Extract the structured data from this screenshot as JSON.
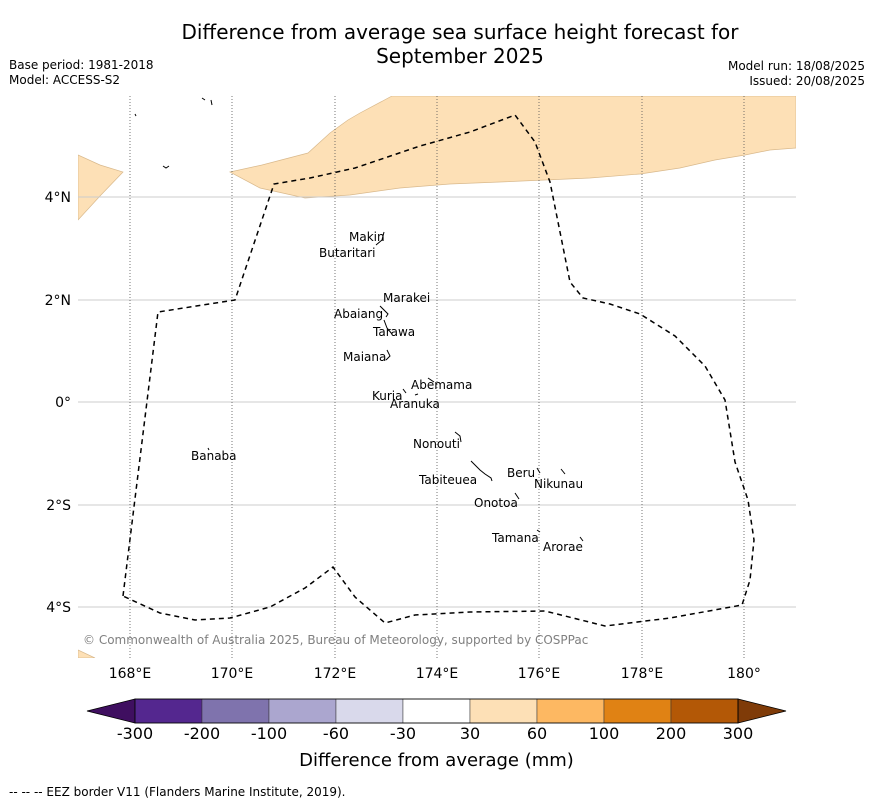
{
  "header": {
    "title_line1": "Difference from average sea surface height forecast for",
    "title_line2": "September 2025",
    "base_period": "Base period: 1981-2018",
    "model": "Model: ACCESS-S2",
    "model_run": "Model run: 18/08/2025",
    "issued": "Issued: 20/08/2025"
  },
  "map": {
    "lon_ticks": [
      "168°E",
      "170°E",
      "172°E",
      "174°E",
      "176°E",
      "178°E",
      "180°"
    ],
    "lat_ticks": [
      "4°N",
      "2°N",
      "0°",
      "2°S",
      "4°S"
    ],
    "islands": [
      "Makin",
      "Butaritari",
      "Marakei",
      "Abaiang",
      "Tarawa",
      "Maiana",
      "Abemama",
      "Kuria",
      "Aranuka",
      "Nonouti",
      "Banaba",
      "Beru",
      "Nikunau",
      "Tabiteuea",
      "Onotoa",
      "Tamana",
      "Arorae"
    ],
    "copyright": "© Commonwealth of Australia 2025, Bureau of Meteorology, supported by COSPPac",
    "anomaly_fill_color": "#fde0b6",
    "eez_line_color": "#000000"
  },
  "colorbar": {
    "labels": [
      "-300",
      "-200",
      "-100",
      "-60",
      "-30",
      "30",
      "60",
      "100",
      "200",
      "300"
    ],
    "colors": [
      "#3f0f60",
      "#54278f",
      "#7f73ad",
      "#aba6cf",
      "#d9d9eb",
      "#ffffff",
      "#fde0b6",
      "#fdb862",
      "#e08214",
      "#b35806",
      "#7f3b08"
    ],
    "title": "Difference from average (mm)"
  },
  "footnote": "--  --  -- EEZ border V11 (Flanders Marine Institute, 2019)."
}
